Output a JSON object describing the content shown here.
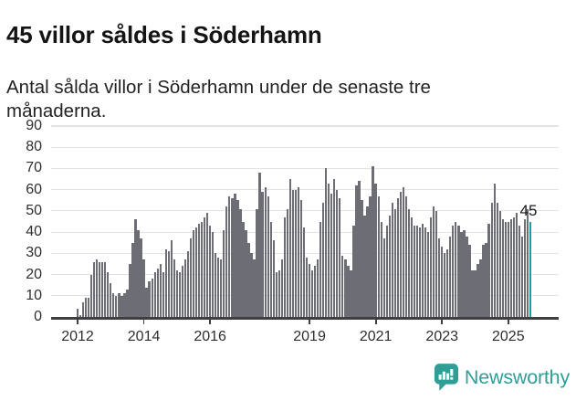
{
  "header": {
    "title": "45 villor såldes i Söderhamn",
    "subtitle": "Antal sålda villor i Söderhamn under de senaste tre månaderna."
  },
  "chart_data": {
    "type": "bar",
    "title": "45 villor såldes i Söderhamn",
    "subtitle": "Antal sålda villor i Söderhamn under de senaste tre månaderna.",
    "xlabel": "",
    "ylabel": "",
    "ylim": [
      0,
      90
    ],
    "yticks": [
      0,
      10,
      20,
      30,
      40,
      50,
      60,
      70,
      80,
      90
    ],
    "grid": true,
    "x_unit": "month",
    "x_range": "2012-01 to 2025-09",
    "xticks": [
      {
        "label": "2012",
        "index": 0
      },
      {
        "label": "2014",
        "index": 24
      },
      {
        "label": "2016",
        "index": 48
      },
      {
        "label": "2019",
        "index": 84
      },
      {
        "label": "2021",
        "index": 108
      },
      {
        "label": "2023",
        "index": 132
      },
      {
        "label": "2025",
        "index": 156
      }
    ],
    "values": [
      4,
      1,
      7,
      9,
      9,
      20,
      26,
      27,
      26,
      26,
      26,
      21,
      16,
      11,
      10,
      11,
      10,
      11,
      13,
      25,
      35,
      46,
      41,
      37,
      27,
      14,
      17,
      18,
      21,
      23,
      25,
      21,
      32,
      31,
      36,
      27,
      22,
      21,
      24,
      27,
      31,
      37,
      41,
      42,
      44,
      45,
      47,
      49,
      43,
      40,
      30,
      28,
      27,
      41,
      52,
      57,
      56,
      58,
      55,
      51,
      45,
      41,
      35,
      30,
      27,
      51,
      68,
      59,
      61,
      57,
      45,
      36,
      21,
      22,
      27,
      47,
      51,
      65,
      60,
      60,
      61,
      55,
      42,
      28,
      25,
      22,
      24,
      27,
      45,
      54,
      70,
      63,
      58,
      65,
      60,
      56,
      29,
      27,
      24,
      22,
      43,
      62,
      64,
      55,
      48,
      52,
      57,
      71,
      63,
      57,
      45,
      37,
      43,
      48,
      54,
      51,
      56,
      59,
      61,
      57,
      51,
      47,
      43,
      43,
      42,
      44,
      42,
      40,
      47,
      52,
      50,
      37,
      33,
      30,
      32,
      38,
      43,
      45,
      43,
      40,
      41,
      38,
      34,
      22,
      22,
      25,
      27,
      34,
      35,
      44,
      54,
      63,
      54,
      50,
      46,
      45,
      45,
      46,
      47,
      49,
      43,
      38,
      46,
      51,
      45
    ],
    "bar_color": "#6d6d75",
    "highlight": {
      "index": 164,
      "value": 45,
      "label": "45",
      "color": "#14a1a0"
    },
    "legend": null
  },
  "footer": {
    "brand": "Newsworthy",
    "brand_color": "#2f9e97",
    "logo_icon": "speech-bubble-bar-chart"
  }
}
